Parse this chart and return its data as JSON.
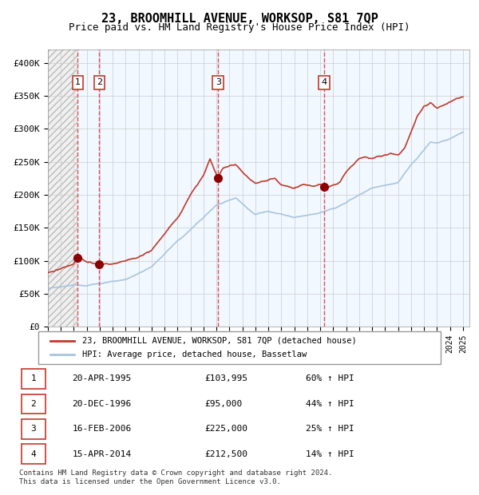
{
  "title": "23, BROOMHILL AVENUE, WORKSOP, S81 7QP",
  "subtitle": "Price paid vs. HM Land Registry's House Price Index (HPI)",
  "ylim": [
    0,
    420000
  ],
  "yticks": [
    0,
    50000,
    100000,
    150000,
    200000,
    250000,
    300000,
    350000,
    400000
  ],
  "ytick_labels": [
    "£0",
    "£50K",
    "£100K",
    "£150K",
    "£200K",
    "£250K",
    "£300K",
    "£350K",
    "£400K"
  ],
  "sales": [
    {
      "date": "1995-04-20",
      "price": 103995,
      "label": "1"
    },
    {
      "date": "1996-12-20",
      "price": 95000,
      "label": "2"
    },
    {
      "date": "2006-02-16",
      "price": 225000,
      "label": "3"
    },
    {
      "date": "2014-04-15",
      "price": 212500,
      "label": "4"
    }
  ],
  "hpi_color": "#a8c4e0",
  "price_color": "#c0392b",
  "sale_dot_color": "#8b0000",
  "vline_color": "#e05050",
  "shade_color": "#ddeeff",
  "grid_color": "#cccccc",
  "background_color": "#ffffff",
  "hatch_color": "#cccccc",
  "legend_entries": [
    "23, BROOMHILL AVENUE, WORKSOP, S81 7QP (detached house)",
    "HPI: Average price, detached house, Bassetlaw"
  ],
  "table_rows": [
    [
      "1",
      "20-APR-1995",
      "£103,995",
      "60% ↑ HPI"
    ],
    [
      "2",
      "20-DEC-1996",
      "£95,000",
      "44% ↑ HPI"
    ],
    [
      "3",
      "16-FEB-2006",
      "£225,000",
      "25% ↑ HPI"
    ],
    [
      "4",
      "15-APR-2014",
      "£212,500",
      "14% ↑ HPI"
    ]
  ],
  "footer": "Contains HM Land Registry data © Crown copyright and database right 2024.\nThis data is licensed under the Open Government Licence v3.0.",
  "xstart_year": 1993,
  "xend_year": 2025
}
